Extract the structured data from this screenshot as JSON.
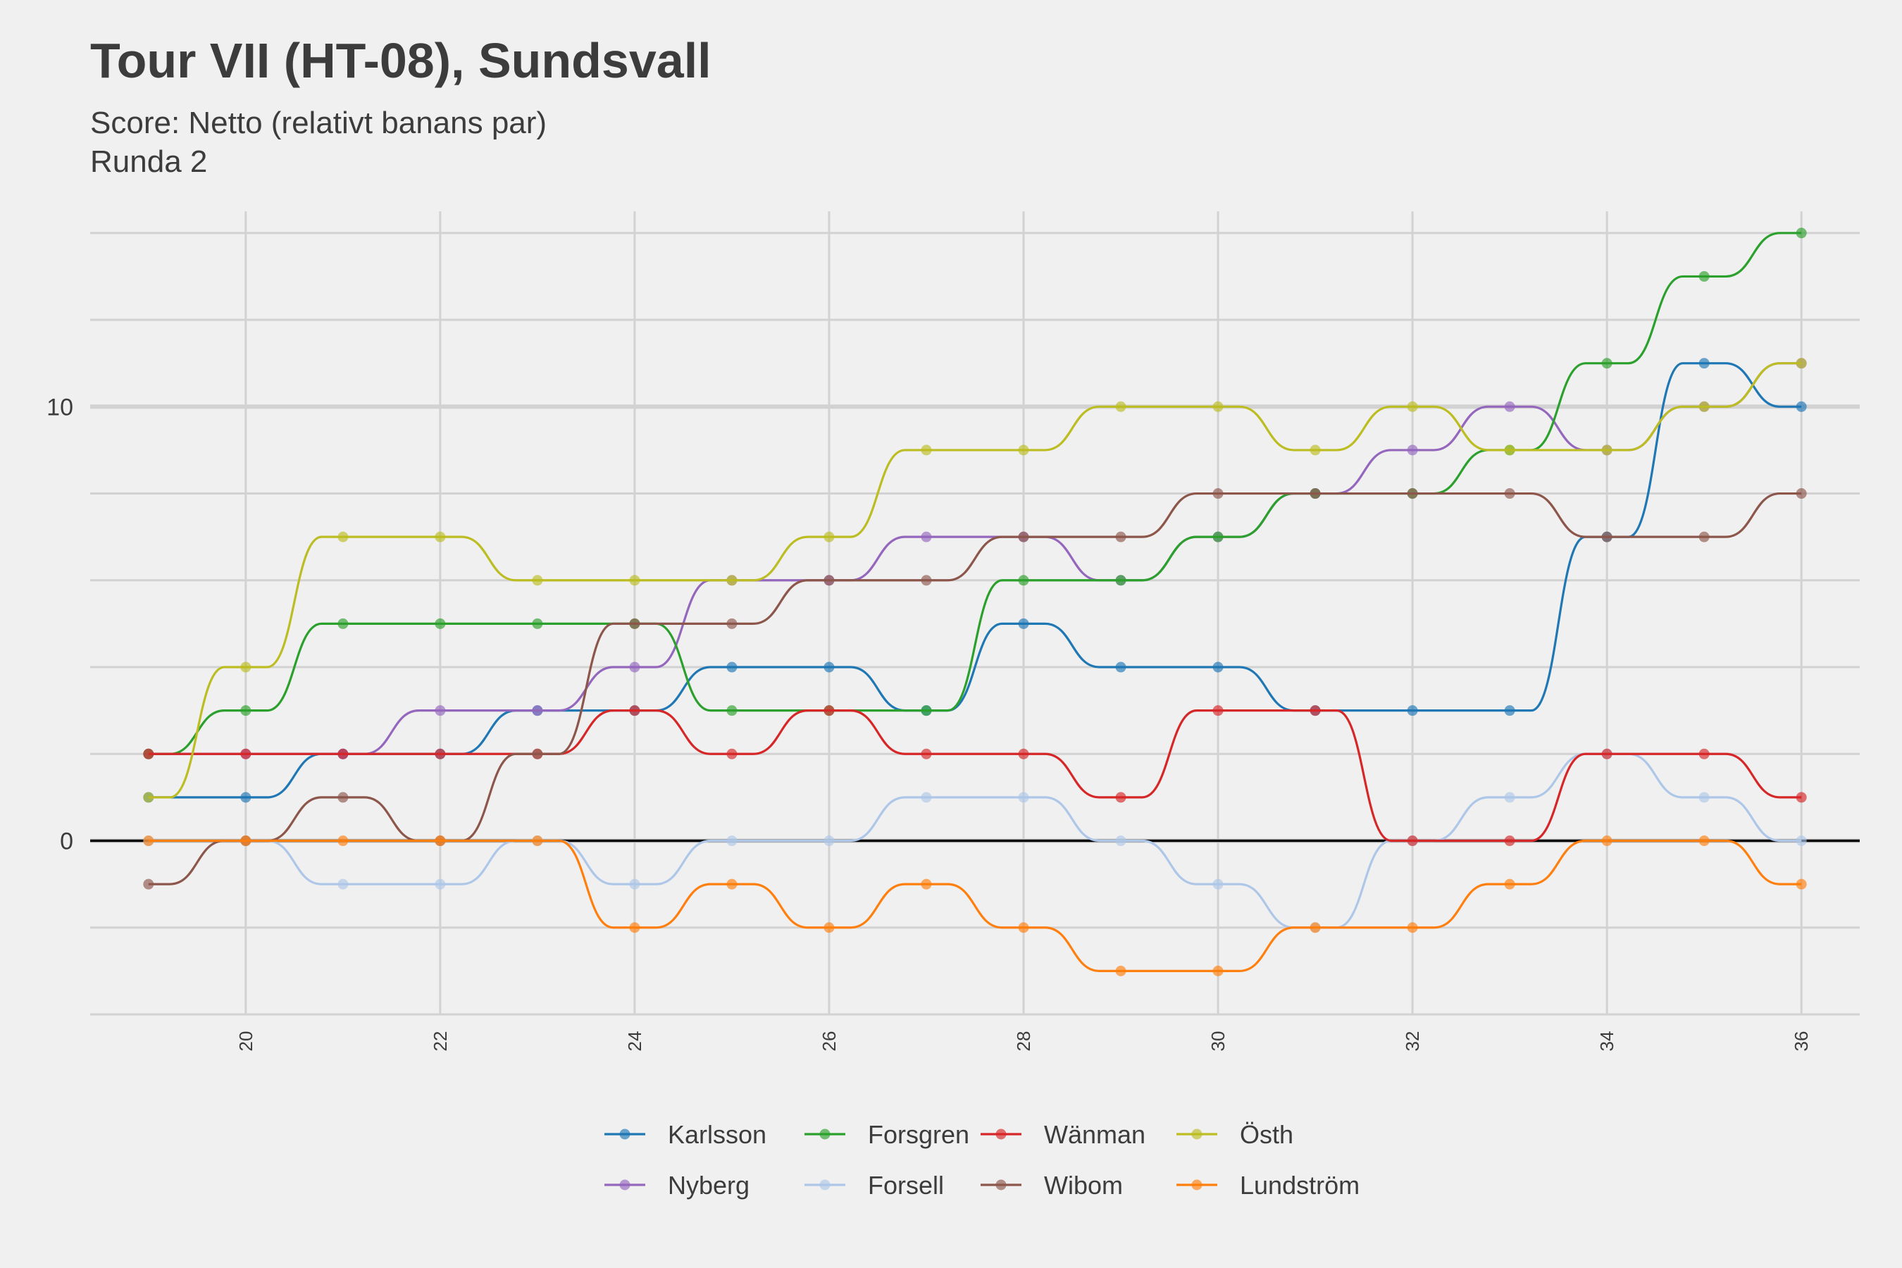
{
  "chart_data": {
    "type": "line",
    "title": "Tour VII (HT-08), Sundsvall",
    "subtitle_lines": [
      "Score: Netto (relativt banans par)",
      "Runda 2"
    ],
    "xlabel": "",
    "ylabel": "",
    "x": [
      19,
      20,
      21,
      22,
      23,
      24,
      25,
      26,
      27,
      28,
      29,
      30,
      31,
      32,
      33,
      34,
      35,
      36
    ],
    "x_ticks": [
      20,
      22,
      24,
      26,
      28,
      30,
      32,
      34,
      36
    ],
    "y_ticks": [
      0,
      10
    ],
    "xlim": [
      18.4,
      36.6
    ],
    "ylim": [
      -4,
      14.5
    ],
    "grid": true,
    "legend_position": "bottom",
    "series": [
      {
        "name": "Karlsson",
        "color": "#1f77b4",
        "values": [
          1,
          1,
          2,
          2,
          3,
          3,
          4,
          4,
          3,
          5,
          4,
          4,
          3,
          3,
          3,
          7,
          11,
          10
        ]
      },
      {
        "name": "Nyberg",
        "color": "#9467bd",
        "values": [
          2,
          2,
          2,
          3,
          3,
          4,
          6,
          6,
          7,
          7,
          6,
          7,
          8,
          9,
          10,
          9,
          10,
          11
        ]
      },
      {
        "name": "Forsgren",
        "color": "#2ca02c",
        "values": [
          2,
          3,
          5,
          5,
          5,
          5,
          3,
          3,
          3,
          6,
          6,
          7,
          8,
          8,
          9,
          11,
          13,
          14
        ]
      },
      {
        "name": "Forsell",
        "color": "#aec7e8",
        "values": [
          0,
          0,
          -1,
          -1,
          0,
          -1,
          0,
          0,
          1,
          1,
          0,
          -1,
          -2,
          0,
          1,
          2,
          1,
          0
        ]
      },
      {
        "name": "Wänman",
        "color": "#d62728",
        "values": [
          2,
          2,
          2,
          2,
          2,
          3,
          2,
          3,
          2,
          2,
          1,
          3,
          3,
          0,
          0,
          2,
          2,
          1
        ]
      },
      {
        "name": "Wibom",
        "color": "#8c564b",
        "values": [
          -1,
          0,
          1,
          0,
          2,
          5,
          5,
          6,
          6,
          7,
          7,
          8,
          8,
          8,
          8,
          7,
          7,
          8
        ]
      },
      {
        "name": "Östh",
        "color": "#bcbd22",
        "values": [
          1,
          4,
          7,
          7,
          6,
          6,
          6,
          7,
          9,
          9,
          10,
          10,
          9,
          10,
          9,
          9,
          10,
          11
        ]
      },
      {
        "name": "Lundström",
        "color": "#ff7f0e",
        "values": [
          0,
          0,
          0,
          0,
          0,
          -2,
          -1,
          -2,
          -1,
          -2,
          -3,
          -3,
          -2,
          -2,
          -1,
          0,
          0,
          -1
        ]
      }
    ]
  }
}
